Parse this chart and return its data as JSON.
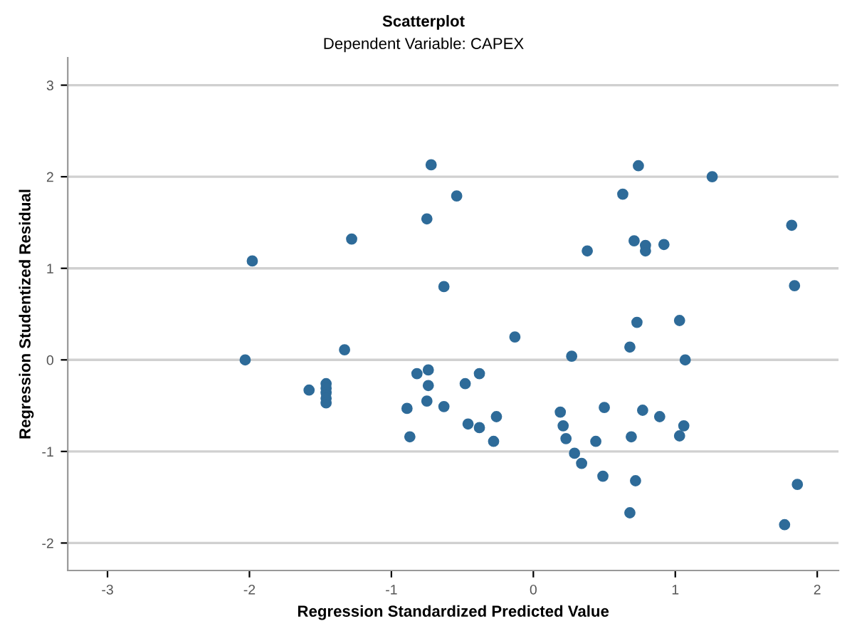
{
  "chart_data": {
    "type": "scatter",
    "title": "Scatterplot",
    "subtitle": "Dependent Variable: CAPEX",
    "xlabel": "Regression Standardized Predicted Value",
    "ylabel": "Regression Studentized Residual",
    "x": [
      -2.03,
      -1.98,
      -1.28,
      -1.33,
      -1.58,
      -1.46,
      -1.46,
      -1.46,
      -1.46,
      -1.46,
      -0.72,
      -0.75,
      -0.63,
      -0.82,
      -0.74,
      -0.74,
      -0.75,
      -0.89,
      -0.87,
      -0.63,
      -0.54,
      -0.48,
      -0.38,
      -0.46,
      -0.38,
      -0.26,
      -0.28,
      -0.13,
      0.27,
      0.38,
      0.19,
      0.21,
      0.23,
      0.29,
      0.34,
      0.44,
      0.5,
      0.49,
      0.63,
      0.74,
      0.71,
      0.79,
      0.79,
      0.92,
      0.73,
      0.68,
      0.69,
      0.72,
      0.68,
      0.77,
      0.89,
      1.03,
      1.07,
      1.06,
      1.03,
      1.26,
      1.82,
      1.84,
      1.86,
      1.77
    ],
    "values": [
      0.0,
      1.08,
      1.32,
      0.11,
      -0.33,
      -0.26,
      -0.31,
      -0.36,
      -0.42,
      -0.47,
      2.13,
      1.54,
      0.8,
      -0.15,
      -0.11,
      -0.28,
      -0.45,
      -0.53,
      -0.84,
      -0.51,
      1.79,
      -0.26,
      -0.15,
      -0.7,
      -0.74,
      -0.62,
      -0.89,
      0.25,
      0.04,
      1.19,
      -0.57,
      -0.72,
      -0.86,
      -1.02,
      -1.13,
      -0.89,
      -0.52,
      -1.27,
      1.81,
      2.12,
      1.3,
      1.25,
      1.19,
      1.26,
      0.41,
      0.14,
      -0.84,
      -1.32,
      -1.67,
      -0.55,
      -0.62,
      0.43,
      0.0,
      -0.72,
      -0.83,
      2.0,
      1.47,
      0.81,
      -1.36,
      -1.8
    ],
    "color": "#2e6b99",
    "marker": "circle",
    "xlim": [
      -3.28,
      2.15
    ],
    "ylim": [
      -2.3,
      3.3
    ],
    "xticks": [
      -3,
      -2,
      -1,
      0,
      1,
      2
    ],
    "yticks": [
      -2,
      -1,
      0,
      1,
      2,
      3
    ],
    "grid": "y"
  }
}
